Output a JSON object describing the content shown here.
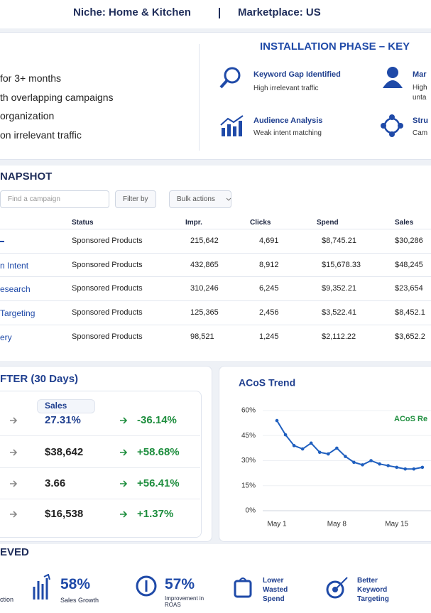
{
  "header": {
    "niche": "Niche: Home & Kitchen",
    "marketplace": "Marketplace: US"
  },
  "issues": [
    "for 3+ months",
    "th overlapping campaigns",
    "organization",
    "on irrelevant traffic"
  ],
  "installation": {
    "title": "INSTALLATION PHASE – KEY",
    "items": [
      {
        "title": "Keyword Gap Identified",
        "desc": "High irrelevant traffic"
      },
      {
        "title": "Mar",
        "desc": "High unta"
      },
      {
        "title": "Audience Analysis",
        "desc": "Weak intent matching"
      },
      {
        "title": "Stru",
        "desc": "Cam"
      }
    ]
  },
  "snapshot": {
    "title": "NAPSHOT",
    "search": "Find a campaign",
    "filter": "Filter by",
    "bulk": "Bulk actions",
    "columns": [
      "Status",
      "Impr.",
      "Clicks",
      "Spend",
      "Sales"
    ],
    "rows": [
      {
        "cells": [
          "Sponsored Products",
          "215,642",
          "4,691",
          "$8,745.21",
          "$30,286"
        ]
      },
      {
        "name": "n Intent",
        "cells": [
          "Sponsored Products",
          "432,865",
          "8,912",
          "$15,678.33",
          "$48,245"
        ]
      },
      {
        "name": "esearch",
        "cells": [
          "Sponsored Products",
          "310,246",
          "6,245",
          "$9,352.21",
          "$23,654"
        ]
      },
      {
        "name": "Targeting",
        "cells": [
          "Sponsored Products",
          "125,365",
          "2,456",
          "$3,522.41",
          "$8,452.1"
        ]
      },
      {
        "name": "ery",
        "cells": [
          "Sponsored Products",
          "98,521",
          "1,245",
          "$2,112.22",
          "$3,652.2"
        ]
      }
    ]
  },
  "after": {
    "title": "FTER (30 Days)",
    "label": "Sales",
    "rows": [
      {
        "value": "27.31%",
        "change": "-36.14%"
      },
      {
        "value": "$38,642",
        "change": "+58.68%"
      },
      {
        "value": "3.66",
        "change": "+56.41%"
      },
      {
        "value": "$16,538",
        "change": "+1.37%"
      }
    ]
  },
  "achieved": {
    "title": "EVED",
    "first": "ction",
    "items": [
      {
        "value": "58%",
        "label": "Sales Growth"
      },
      {
        "value": "57%",
        "label": "Improvement in ROAS"
      },
      {
        "label": "Lower Wasted Spend"
      },
      {
        "label": "Better Keyword Targeting"
      }
    ]
  },
  "chart_data": {
    "type": "line",
    "title": "ACoS Trend",
    "categories": [
      "May 1",
      null,
      null,
      null,
      null,
      null,
      null,
      "May 8",
      null,
      null,
      null,
      null,
      null,
      null,
      "May 15",
      null,
      null,
      null
    ],
    "series": [
      {
        "name": "ACoS Re",
        "color": "#1f5fbf",
        "values": [
          54,
          45.5,
          39,
          37,
          40.5,
          35,
          34,
          37.5,
          32.5,
          29,
          27.5,
          30,
          28,
          27,
          26,
          25,
          25,
          26
        ]
      }
    ],
    "ylim": [
      0,
      60
    ],
    "yticks": [
      {
        "value": 0,
        "label": "0%"
      },
      {
        "value": 15,
        "label": "15%"
      },
      {
        "value": 30,
        "label": "30%"
      },
      {
        "value": 45,
        "label": "45%"
      },
      {
        "value": 60,
        "label": "60%"
      }
    ],
    "grid": true
  }
}
